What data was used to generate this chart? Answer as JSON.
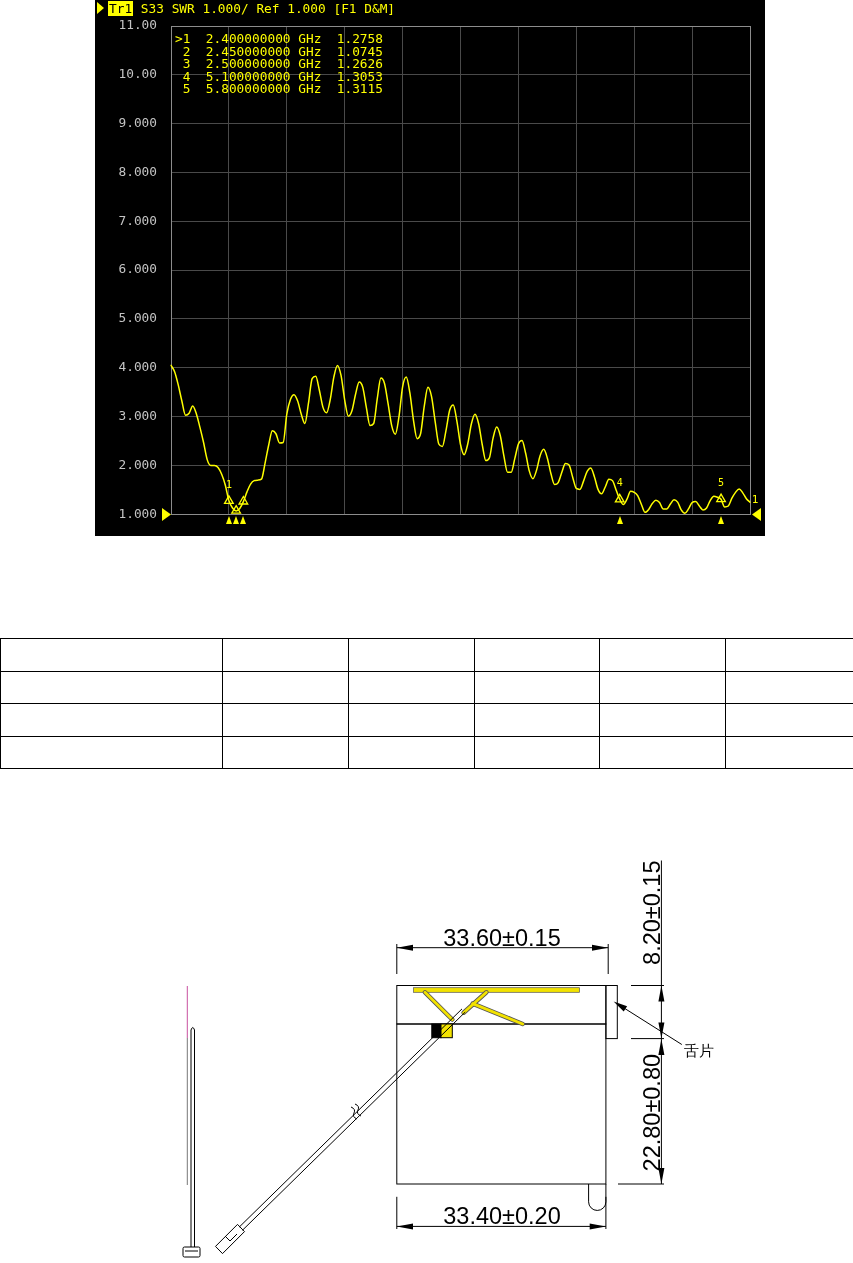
{
  "chart_data": {
    "type": "line",
    "title": "Tr1 S33 SWR 1.000/ Ref 1.000 [F1 D&M]",
    "categories": [
      null,
      null,
      null,
      null,
      null,
      null,
      null,
      null,
      null,
      null,
      null,
      null,
      null,
      null,
      null,
      null,
      null,
      null,
      null,
      null,
      null,
      null,
      null,
      null,
      null,
      null,
      null,
      null,
      null,
      null,
      null,
      null,
      null,
      null,
      null,
      null,
      null,
      null,
      null,
      null,
      null,
      null,
      null,
      null,
      null,
      null,
      null,
      null,
      null,
      null,
      null,
      null,
      null,
      null,
      null,
      null,
      null,
      null,
      null,
      null,
      null,
      null,
      null,
      null,
      null,
      null,
      null,
      null,
      null,
      null,
      null,
      null,
      null,
      null,
      null,
      null,
      null,
      null,
      null,
      null,
      null,
      null,
      null,
      null,
      null,
      null,
      null,
      null,
      null,
      null,
      null,
      null,
      null,
      null,
      null,
      null,
      null,
      null,
      null,
      null,
      null,
      null,
      null,
      null,
      null,
      null,
      null,
      null,
      null,
      null,
      null,
      null,
      null,
      null,
      null,
      null,
      null,
      null,
      null,
      null,
      null,
      null,
      null,
      null,
      null,
      null,
      null,
      null,
      null,
      null,
      null,
      null,
      null,
      null,
      null,
      null,
      null,
      null,
      null,
      null,
      null,
      null,
      null,
      null,
      null,
      null,
      null,
      null,
      null,
      null,
      null,
      null,
      null,
      null,
      null,
      null,
      null,
      null,
      null,
      null,
      null
    ],
    "ylim": [
      1,
      11
    ],
    "yticks": [
      {
        "value": 1,
        "label": "1.000"
      },
      {
        "value": 2,
        "label": "2.000"
      },
      {
        "value": 3,
        "label": "3.000"
      },
      {
        "value": 4,
        "label": "4.000"
      },
      {
        "value": 5,
        "label": "5.000"
      },
      {
        "value": 6,
        "label": "6.000"
      },
      {
        "value": 7,
        "label": "7.000"
      },
      {
        "value": 8,
        "label": "8.000"
      },
      {
        "value": 9,
        "label": "9.000"
      },
      {
        "value": 10,
        "label": "10.00"
      },
      {
        "value": 11,
        "label": "11.00"
      }
    ],
    "tick_labels": "y",
    "grid": true,
    "series": [
      {
        "type": "line",
        "color": "#ffff00",
        "values": [
          4.05,
          3.92,
          3.65,
          3.32,
          3.03,
          3.07,
          3.22,
          3.06,
          2.78,
          2.47,
          2.12,
          2.0,
          2.0,
          1.96,
          1.82,
          1.6,
          1.28,
          1.13,
          1.07,
          1.12,
          1.26,
          1.46,
          1.62,
          1.69,
          1.7,
          1.72,
          2.05,
          2.42,
          2.71,
          2.65,
          2.46,
          2.47,
          3.05,
          3.35,
          3.45,
          3.32,
          3.05,
          2.86,
          3.28,
          3.78,
          3.83,
          3.54,
          3.19,
          3.08,
          3.35,
          3.81,
          4.05,
          3.84,
          3.34,
          3.01,
          3.12,
          3.46,
          3.71,
          3.6,
          3.18,
          2.82,
          2.86,
          3.37,
          3.79,
          3.68,
          3.26,
          2.81,
          2.64,
          3.0,
          3.61,
          3.81,
          3.49,
          2.93,
          2.55,
          2.66,
          3.22,
          3.6,
          3.41,
          2.9,
          2.44,
          2.39,
          2.72,
          3.13,
          3.24,
          2.91,
          2.43,
          2.22,
          2.44,
          2.85,
          3.05,
          2.86,
          2.43,
          2.1,
          2.16,
          2.56,
          2.79,
          2.61,
          2.19,
          1.86,
          1.86,
          2.14,
          2.44,
          2.51,
          2.25,
          1.89,
          1.73,
          1.9,
          2.2,
          2.33,
          2.15,
          1.83,
          1.61,
          1.65,
          1.86,
          2.04,
          2.01,
          1.76,
          1.53,
          1.51,
          1.68,
          1.88,
          1.95,
          1.77,
          1.51,
          1.42,
          1.56,
          1.72,
          1.69,
          1.5,
          1.31,
          1.2,
          1.31,
          1.47,
          1.45,
          1.38,
          1.2,
          1.04,
          1.1,
          1.22,
          1.29,
          1.24,
          1.11,
          1.11,
          1.21,
          1.3,
          1.25,
          1.09,
          1.02,
          1.11,
          1.24,
          1.26,
          1.17,
          1.09,
          1.13,
          1.28,
          1.37,
          1.35,
          1.31,
          1.15,
          1.17,
          1.33,
          1.45,
          1.52,
          1.44,
          1.32,
          1.25
        ]
      },
      {
        "type": "scatter",
        "color": "#ffff00",
        "marker": "triangle",
        "values": [
          null,
          null,
          null,
          null,
          null,
          null,
          null,
          null,
          null,
          null,
          null,
          null,
          null,
          null,
          null,
          null,
          1.2758,
          null,
          1.0745,
          null,
          1.2626,
          null,
          null,
          null,
          null,
          null,
          null,
          null,
          null,
          null,
          null,
          null,
          null,
          null,
          null,
          null,
          null,
          null,
          null,
          null,
          null,
          null,
          null,
          null,
          null,
          null,
          null,
          null,
          null,
          null,
          null,
          null,
          null,
          null,
          null,
          null,
          null,
          null,
          null,
          null,
          null,
          null,
          null,
          null,
          null,
          null,
          null,
          null,
          null,
          null,
          null,
          null,
          null,
          null,
          null,
          null,
          null,
          null,
          null,
          null,
          null,
          null,
          null,
          null,
          null,
          null,
          null,
          null,
          null,
          null,
          null,
          null,
          null,
          null,
          null,
          null,
          null,
          null,
          null,
          null,
          null,
          null,
          null,
          null,
          null,
          null,
          null,
          null,
          null,
          null,
          null,
          null,
          null,
          null,
          null,
          null,
          null,
          null,
          null,
          null,
          null,
          null,
          null,
          null,
          1.3053,
          null,
          null,
          null,
          null,
          null,
          null,
          null,
          null,
          null,
          null,
          null,
          null,
          null,
          null,
          null,
          null,
          null,
          null,
          null,
          null,
          null,
          null,
          null,
          null,
          null,
          null,
          null,
          1.3115,
          null,
          null,
          null,
          null,
          null,
          null,
          null,
          null
        ]
      }
    ],
    "annotations": [
      ">1  2.400000000 GHz  1.2758",
      "2  2.450000000 GHz  1.0745",
      "3  2.500000000 GHz  1.2626",
      "4  5.100000000 GHz  1.3053",
      "5  5.800000000 GHz  1.3115",
      "33.60±0.15",
      "8.20±0.15",
      "22.80±0.80",
      "33.40±0.20",
      "舌片",
      "1",
      {
        "text": "1",
        "y": 1.2758
      },
      {
        "text": "4",
        "y": 1.3053
      },
      {
        "text": "5",
        "y": 1.3115
      }
    ]
  }
}
